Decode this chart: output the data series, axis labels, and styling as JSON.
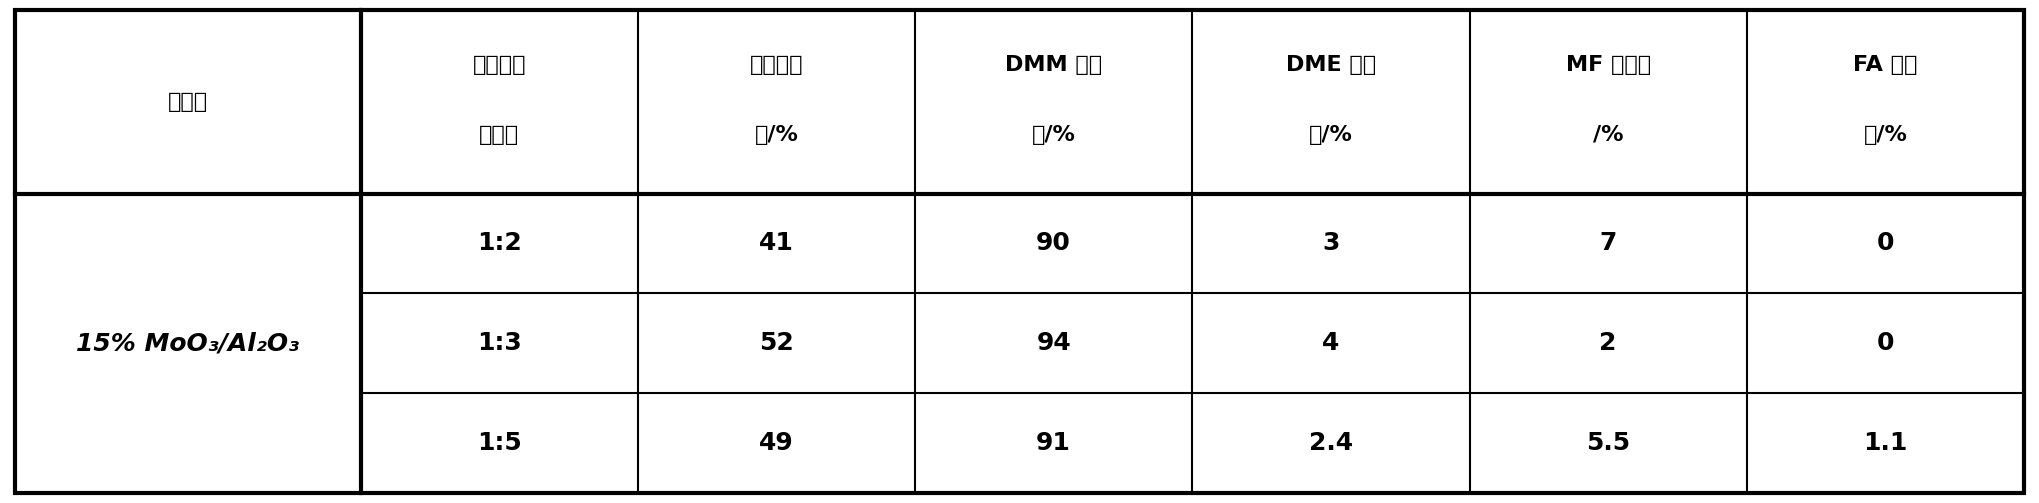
{
  "col_headers_line1": [
    "反应氧气",
    "甲醇转化",
    "DMM 选择",
    "DME 选择",
    "MF 选择性",
    "FA 选择"
  ],
  "col_headers_line2": [
    "氮气比",
    "率/%",
    "性/%",
    "性/%",
    "/%",
    "性/%"
  ],
  "row_header_label": "催化剂",
  "catalyst_label": "15% MoO",
  "catalyst_sub1": "3",
  "catalyst_mid": "/Al",
  "catalyst_sub2": "2",
  "catalyst_end": "O",
  "catalyst_sub3": "3",
  "rows": [
    [
      "1:2",
      "41",
      "90",
      "3",
      "7",
      "0"
    ],
    [
      "1:3",
      "52",
      "94",
      "4",
      "2",
      "0"
    ],
    [
      "1:5",
      "49",
      "91",
      "2.4",
      "5.5",
      "1.1"
    ]
  ],
  "bg_color": "#ffffff",
  "line_color": "#000000",
  "text_color": "#000000",
  "font_size": 16,
  "header_font_size": 16,
  "data_font_size": 18
}
